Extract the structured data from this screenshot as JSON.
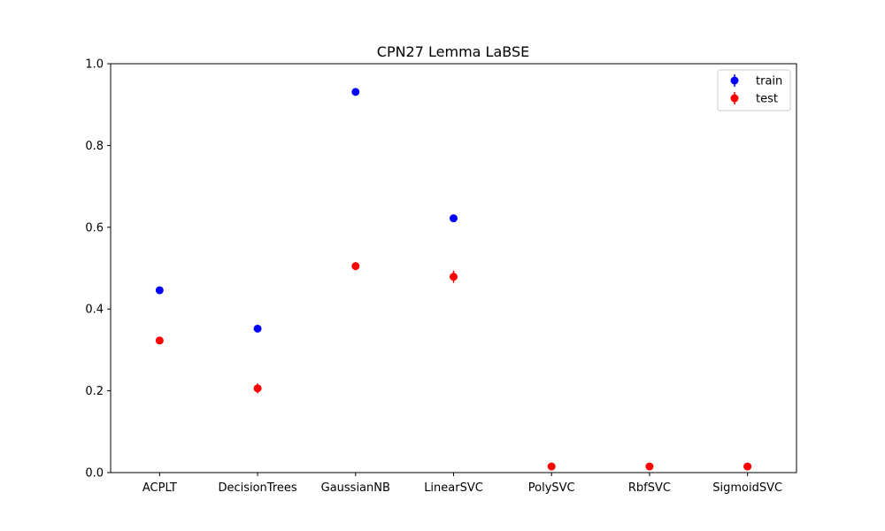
{
  "chart_data": {
    "type": "scatter",
    "title": "CPN27 Lemma LaBSE",
    "xlabel": "",
    "ylabel": "",
    "categories": [
      "ACPLT",
      "DecisionTrees",
      "GaussianNB",
      "LinearSVC",
      "PolySVC",
      "RbfSVC",
      "SigmoidSVC"
    ],
    "ylim": [
      0,
      1.0
    ],
    "yticks": [
      "0.0",
      "0.2",
      "0.4",
      "0.6",
      "0.8",
      "1.0"
    ],
    "grid": false,
    "legend_position": "top-right",
    "series": [
      {
        "name": "train",
        "color": "#0000ff",
        "values": [
          0.446,
          0.352,
          0.931,
          0.622,
          null,
          null,
          null
        ],
        "errors": [
          0.003,
          0.003,
          0.003,
          0.003,
          null,
          null,
          null
        ]
      },
      {
        "name": "test",
        "color": "#ff0000",
        "values": [
          0.323,
          0.206,
          0.505,
          0.479,
          0.015,
          0.015,
          0.015
        ],
        "errors": [
          0.008,
          0.012,
          0.01,
          0.015,
          0.005,
          0.005,
          0.005
        ]
      }
    ]
  }
}
